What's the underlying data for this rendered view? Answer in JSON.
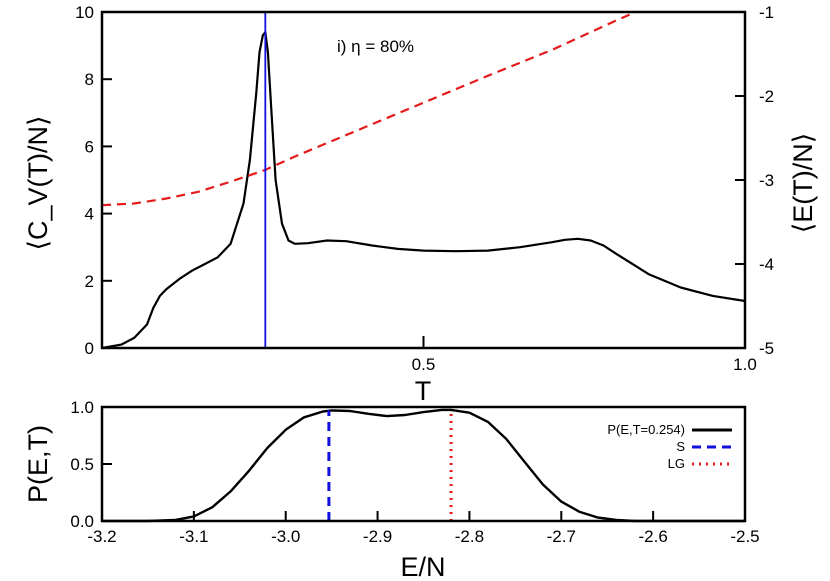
{
  "colors": {
    "black": "#000000",
    "red": "#e41a1c",
    "blue": "#1010e0"
  },
  "chart_data": [
    {
      "type": "line",
      "xlabel": "T",
      "ylabel": "⟨C_V(T)/N⟩",
      "y2label": "⟨E(T)/N⟩",
      "annotation": "i) η = 80%",
      "xlim": [
        0,
        1.0
      ],
      "ylim": [
        0,
        10
      ],
      "y2lim": [
        -5,
        -1
      ],
      "xticks": [
        "0.5",
        "1.0"
      ],
      "yticks": [
        "0",
        "2",
        "4",
        "6",
        "8",
        "10"
      ],
      "y2ticks": [
        "-5",
        "-4",
        "-3",
        "-2",
        "-1"
      ],
      "vline_x": 0.254,
      "series": [
        {
          "axis": "left",
          "style": "solid",
          "color": "#000000",
          "x": [
            0.0,
            0.03,
            0.05,
            0.07,
            0.08,
            0.09,
            0.1,
            0.12,
            0.14,
            0.16,
            0.18,
            0.2,
            0.22,
            0.23,
            0.24,
            0.245,
            0.25,
            0.254,
            0.258,
            0.263,
            0.27,
            0.28,
            0.29,
            0.3,
            0.32,
            0.35,
            0.38,
            0.42,
            0.46,
            0.5,
            0.55,
            0.6,
            0.65,
            0.7,
            0.72,
            0.74,
            0.76,
            0.78,
            0.8,
            0.85,
            0.9,
            0.95,
            1.0
          ],
          "y": [
            0.0,
            0.1,
            0.3,
            0.7,
            1.2,
            1.55,
            1.75,
            2.05,
            2.3,
            2.5,
            2.7,
            3.1,
            4.3,
            5.6,
            7.6,
            8.8,
            9.3,
            9.4,
            8.8,
            7.2,
            5.0,
            3.7,
            3.2,
            3.1,
            3.12,
            3.2,
            3.18,
            3.05,
            2.95,
            2.9,
            2.88,
            2.9,
            3.0,
            3.15,
            3.22,
            3.25,
            3.2,
            3.05,
            2.8,
            2.2,
            1.8,
            1.55,
            1.4
          ]
        },
        {
          "axis": "right",
          "style": "dashed",
          "color": "#e41a1c",
          "x": [
            0.0,
            0.05,
            0.1,
            0.15,
            0.2,
            0.254,
            0.3,
            0.4,
            0.5,
            0.6,
            0.7,
            0.8,
            0.83
          ],
          "y": [
            -3.3,
            -3.28,
            -3.22,
            -3.14,
            -3.02,
            -2.88,
            -2.72,
            -2.4,
            -2.08,
            -1.76,
            -1.45,
            -1.1,
            -1.0
          ]
        }
      ]
    },
    {
      "type": "line",
      "xlabel": "E/N",
      "ylabel": "P(E,T)",
      "xlim": [
        -3.2,
        -2.5
      ],
      "ylim": [
        0,
        1.0
      ],
      "xticks": [
        "-3.2",
        "-3.1",
        "-3.0",
        "-2.9",
        "-2.8",
        "-2.7",
        "-2.6",
        "-2.5"
      ],
      "yticks": [
        "0.0",
        "0.5",
        "1.0"
      ],
      "legend": [
        "P(E,T=0.254)",
        "S",
        "LG"
      ],
      "legend_position": "right",
      "series": [
        {
          "name": "P(E,T=0.254)",
          "style": "solid",
          "color": "#000000",
          "x": [
            -3.2,
            -3.15,
            -3.12,
            -3.1,
            -3.08,
            -3.06,
            -3.04,
            -3.02,
            -3.0,
            -2.98,
            -2.96,
            -2.95,
            -2.93,
            -2.91,
            -2.89,
            -2.87,
            -2.85,
            -2.83,
            -2.82,
            -2.8,
            -2.78,
            -2.76,
            -2.74,
            -2.72,
            -2.7,
            -2.68,
            -2.66,
            -2.64,
            -2.62,
            -2.6,
            -2.55,
            -2.5
          ],
          "y": [
            0.0,
            0.0,
            0.01,
            0.04,
            0.12,
            0.26,
            0.44,
            0.64,
            0.8,
            0.91,
            0.96,
            0.97,
            0.965,
            0.94,
            0.92,
            0.93,
            0.955,
            0.975,
            0.975,
            0.95,
            0.87,
            0.72,
            0.52,
            0.32,
            0.17,
            0.08,
            0.03,
            0.01,
            0.0,
            0.0,
            0.0,
            0.0
          ]
        },
        {
          "name": "S",
          "style": "dashed",
          "color": "#1010e0",
          "x": [
            -2.953,
            -2.953
          ],
          "y": [
            0.0,
            0.97
          ]
        },
        {
          "name": "LG",
          "style": "dotted",
          "color": "#e41a1c",
          "x": [
            -2.82,
            -2.82
          ],
          "y": [
            0.0,
            0.975
          ]
        }
      ]
    }
  ]
}
